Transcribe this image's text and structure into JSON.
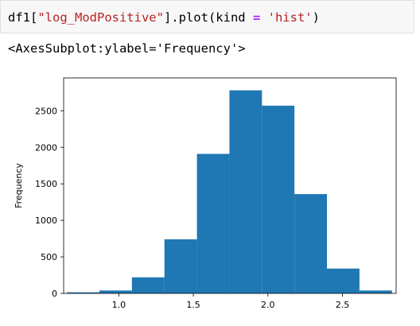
{
  "cell": {
    "code_tokens": [
      {
        "text": "df1[",
        "kind": "plain"
      },
      {
        "text": "\"log_ModPositive\"",
        "kind": "string"
      },
      {
        "text": "].plot(kind ",
        "kind": "plain"
      },
      {
        "text": "=",
        "kind": "operator"
      },
      {
        "text": " ",
        "kind": "plain"
      },
      {
        "text": "'hist'",
        "kind": "string"
      },
      {
        "text": ")",
        "kind": "plain"
      }
    ]
  },
  "output": {
    "repr": "<AxesSubplot:ylabel='Frequency'>"
  },
  "colors": {
    "bar": "#1f77b4",
    "string": "#ba2121",
    "operator": "#aa22ff"
  },
  "chart_data": {
    "type": "bar",
    "title": "",
    "xlabel": "",
    "ylabel": "Frequency",
    "xlim": [
      0.63,
      2.86
    ],
    "ylim": [
      0,
      2950
    ],
    "bin_edges": [
      0.652,
      0.87,
      1.088,
      1.306,
      1.524,
      1.742,
      1.96,
      2.178,
      2.396,
      2.614,
      2.832
    ],
    "values": [
      15,
      40,
      220,
      740,
      1910,
      2780,
      2570,
      1360,
      340,
      40
    ],
    "xticks": [
      1.0,
      1.5,
      2.0,
      2.5
    ],
    "xtick_labels": [
      "1.0",
      "1.5",
      "2.0",
      "2.5"
    ],
    "yticks": [
      0,
      500,
      1000,
      1500,
      2000,
      2500
    ],
    "ytick_labels": [
      "0",
      "500",
      "1000",
      "1500",
      "2000",
      "2500"
    ],
    "grid": false,
    "legend": "none"
  }
}
